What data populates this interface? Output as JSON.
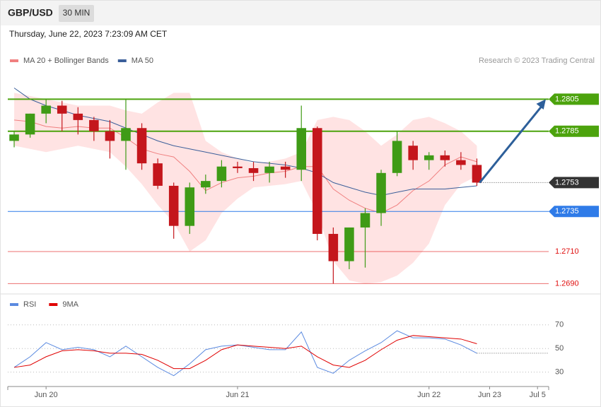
{
  "chart_data": {
    "type": "candlestick",
    "title": "GBP/USD",
    "timeframe": "30 MIN",
    "subtitle": "Thursday, June 22, 2023 7:23:09 AM CET",
    "credit": "Research © 2023 Trading Central",
    "up_color": "#3f9b16",
    "down_color": "#c4161c",
    "open": [
      1.2779,
      1.2783,
      1.2796,
      1.2801,
      1.2796,
      1.2792,
      1.2785,
      1.2779,
      1.2787,
      1.2765,
      1.2751,
      1.2726,
      1.275,
      1.2754,
      1.2763,
      1.2762,
      1.2759,
      1.2763,
      1.2761,
      1.2787,
      1.2721,
      1.2704,
      1.2725,
      1.2734,
      1.2759,
      1.2776,
      1.2767,
      1.277,
      1.2767,
      1.2764
    ],
    "high": [
      1.2785,
      1.2796,
      1.2805,
      1.2804,
      1.28,
      1.2794,
      1.2792,
      1.2805,
      1.279,
      1.2768,
      1.2753,
      1.2753,
      1.2758,
      1.2767,
      1.2766,
      1.2766,
      1.2766,
      1.2766,
      1.2801,
      1.2788,
      1.2725,
      1.2725,
      1.2737,
      1.2761,
      1.2785,
      1.2779,
      1.2772,
      1.2773,
      1.2772,
      1.2768
    ],
    "low": [
      1.2775,
      1.2781,
      1.279,
      1.2785,
      1.2783,
      1.2779,
      1.2768,
      1.2761,
      1.2761,
      1.2749,
      1.2718,
      1.2721,
      1.2746,
      1.275,
      1.2759,
      1.2754,
      1.2753,
      1.2756,
      1.2754,
      1.2717,
      1.269,
      1.2699,
      1.27,
      1.2726,
      1.2757,
      1.2761,
      1.2761,
      1.2763,
      1.2761,
      1.2751
    ],
    "close": [
      1.2783,
      1.2796,
      1.2801,
      1.2796,
      1.2792,
      1.2785,
      1.2779,
      1.2787,
      1.2765,
      1.2751,
      1.2726,
      1.275,
      1.2754,
      1.2763,
      1.2762,
      1.2759,
      1.2763,
      1.2761,
      1.2787,
      1.2721,
      1.2704,
      1.2725,
      1.2734,
      1.2759,
      1.2779,
      1.2767,
      1.277,
      1.2767,
      1.2764,
      1.2753
    ],
    "overlays": [
      {
        "name": "MA 20 + Bollinger Bands",
        "color": "#f08080",
        "band_color": "#ffdede",
        "values": [
          1.2792,
          1.2791,
          1.2788,
          1.2787,
          1.2788,
          1.2787,
          1.2787,
          1.2781,
          1.2774,
          1.2771,
          1.2769,
          1.276,
          1.2748,
          1.2753,
          1.2756,
          1.2757,
          1.2759,
          1.276,
          1.2763,
          1.2763,
          1.2749,
          1.2742,
          1.2737,
          1.2734,
          1.2739,
          1.2748,
          1.2754,
          1.2764,
          1.2769,
          1.2766
        ],
        "upper": [
          1.2809,
          1.2807,
          1.2805,
          1.2803,
          1.2801,
          1.2801,
          1.2801,
          1.2798,
          1.2796,
          1.2803,
          1.2809,
          1.2809,
          1.2779,
          1.2772,
          1.2768,
          1.2765,
          1.2766,
          1.2768,
          1.2772,
          1.2792,
          1.2794,
          1.2792,
          1.2785,
          1.2776,
          1.2783,
          1.2792,
          1.2794,
          1.279,
          1.2785,
          1.2776
        ],
        "lower": [
          1.2776,
          1.2774,
          1.2772,
          1.2774,
          1.2776,
          1.2774,
          1.2772,
          1.2763,
          1.2752,
          1.2739,
          1.2728,
          1.271,
          1.2717,
          1.2734,
          1.2743,
          1.275,
          1.2751,
          1.2752,
          1.2754,
          1.2734,
          1.2704,
          1.2692,
          1.269,
          1.2691,
          1.2695,
          1.2703,
          1.2715,
          1.2739,
          1.2752,
          1.2757
        ]
      },
      {
        "name": "MA 50",
        "color": "#3b5f9a",
        "values": [
          1.2812,
          1.2805,
          1.2801,
          1.2798,
          1.2795,
          1.2793,
          1.2791,
          1.2787,
          1.2783,
          1.2779,
          1.2776,
          1.2774,
          1.2772,
          1.277,
          1.2768,
          1.2766,
          1.2765,
          1.2764,
          1.2762,
          1.2759,
          1.2753,
          1.275,
          1.2747,
          1.2745,
          1.2747,
          1.2749,
          1.2749,
          1.2749,
          1.275,
          1.2751
        ]
      }
    ],
    "levels": [
      {
        "value": 1.2805,
        "label": "1.2805",
        "color": "#4ca30d",
        "style": "box"
      },
      {
        "value": 1.2785,
        "label": "1.2785",
        "color": "#4ca30d",
        "style": "box"
      },
      {
        "value": 1.2753,
        "label": "1.2753",
        "color": "#333333",
        "style": "current"
      },
      {
        "value": 1.2735,
        "label": "1.2735",
        "color": "#2f7be8",
        "style": "box"
      },
      {
        "value": 1.271,
        "label": "1.2710",
        "color": "#e01010",
        "style": "text"
      },
      {
        "value": 1.269,
        "label": "1.2690",
        "color": "#e01010",
        "style": "text"
      }
    ],
    "forecast_color": "#2d5f9a",
    "ylim": [
      1.2684,
      1.2851
    ],
    "xlim": [
      -0.4,
      33.5
    ],
    "xticks": [
      {
        "value": 2,
        "label": "Jun 20"
      },
      {
        "value": 14,
        "label": "Jun 21"
      },
      {
        "value": 26,
        "label": "Jun 22"
      },
      {
        "value": 29.8,
        "label": "Jun 23"
      },
      {
        "value": 32.8,
        "label": "Jul 5"
      }
    ],
    "indicator": {
      "type": "line",
      "ylim": [
        19,
        95
      ],
      "yticks": [
        30,
        50,
        70
      ],
      "series": [
        {
          "name": "RSI",
          "color": "#5b8ae0",
          "values": [
            34,
            43,
            55,
            49,
            51,
            49,
            43,
            52,
            43,
            34,
            27,
            37,
            49,
            52,
            53,
            51,
            49,
            49,
            64,
            34,
            29,
            40,
            48,
            55,
            65,
            59,
            59,
            58,
            53,
            46
          ]
        },
        {
          "name": "9MA",
          "color": "#e00000",
          "values": [
            34,
            36,
            43,
            48,
            49,
            48,
            46,
            46,
            45,
            40,
            33,
            33,
            40,
            49,
            53,
            52,
            51,
            50,
            52,
            43,
            36,
            34,
            40,
            49,
            57,
            61,
            60,
            59,
            58,
            54
          ]
        }
      ]
    }
  }
}
